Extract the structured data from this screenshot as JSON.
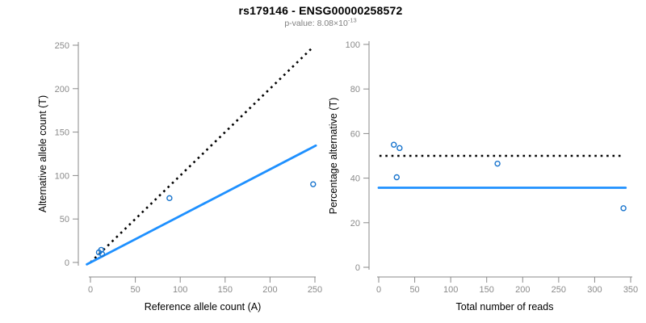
{
  "header": {
    "title": "rs179146 - ENSG00000258572",
    "subtitle_prefix": "p-value: 8.08×10",
    "subtitle_exponent": "-13"
  },
  "colors": {
    "accent_line_blue": "#1E90FF",
    "point_blue": "#1874CD",
    "reference_dotted": "#000000",
    "axis_gray": "#8a8a8a",
    "title_black": "#000000",
    "subtitle_gray": "#808080"
  },
  "chart_data": [
    {
      "type": "scatter",
      "panel": "left",
      "xlabel": "Reference allele count (A)",
      "ylabel": "Alternative allele count (T)",
      "xlim": [
        0,
        250
      ],
      "ylim": [
        0,
        250
      ],
      "xticks": [
        0,
        50,
        100,
        150,
        200,
        250
      ],
      "yticks": [
        0,
        50,
        100,
        150,
        200,
        250
      ],
      "grid": false,
      "legend": false,
      "points": [
        [
          9.4,
          11.6
        ],
        [
          12,
          14.5
        ],
        [
          13,
          9.7
        ],
        [
          88,
          74
        ],
        [
          248,
          90
        ]
      ],
      "lines": [
        {
          "name": "identity-reference-dotted",
          "style": "dotted",
          "color": "#000000",
          "from": [
            0,
            0
          ],
          "to": [
            248,
            248
          ]
        },
        {
          "name": "regression-fit-line",
          "style": "solid",
          "color": "#1E90FF",
          "from": [
            -4,
            -2.2
          ],
          "to": [
            251,
            134.5
          ]
        }
      ]
    },
    {
      "type": "scatter",
      "panel": "right",
      "xlabel": "Total number of reads",
      "ylabel": "Percentage alternative (T)",
      "xlim": [
        0,
        350
      ],
      "ylim": [
        0,
        100
      ],
      "xticks": [
        0,
        50,
        100,
        150,
        200,
        250,
        300,
        350
      ],
      "yticks": [
        0,
        20,
        40,
        60,
        80,
        100
      ],
      "grid": false,
      "legend": false,
      "points": [
        [
          21,
          55
        ],
        [
          29,
          53.5
        ],
        [
          25,
          40.4
        ],
        [
          165,
          46.5
        ],
        [
          340,
          26.5
        ]
      ],
      "lines": [
        {
          "name": "fifty-percent-reference-dotted",
          "style": "dotted",
          "color": "#000000",
          "from": [
            1,
            50
          ],
          "to": [
            336,
            50
          ]
        },
        {
          "name": "mean-percentage-line",
          "style": "solid",
          "color": "#1E90FF",
          "from": [
            0,
            35.7
          ],
          "to": [
            343,
            35.7
          ]
        }
      ]
    }
  ]
}
